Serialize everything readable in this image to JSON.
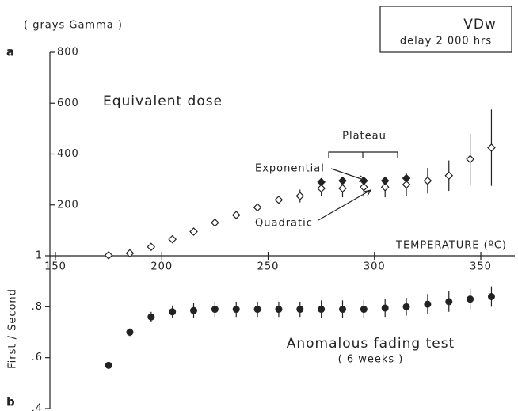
{
  "chart_data": [
    {
      "type": "scatter",
      "panel": "a",
      "title": "Equivalent dose",
      "ylabel": "( grays Gamma )",
      "xlabel": "TEMPERATURE (ºC)",
      "annotations": [
        "Plateau",
        "VDw",
        "delay 2 000 hrs"
      ],
      "xlim": [
        147.4,
        366
      ],
      "xticks": [
        150,
        200,
        250,
        300,
        350
      ],
      "ylim": [
        0,
        800
      ],
      "yticks": [
        200,
        400,
        600,
        800
      ],
      "series": [
        {
          "name": "Quadratic",
          "color": "#222222",
          "filled": false,
          "x": [
            175,
            185,
            195,
            205,
            215,
            225,
            235,
            245,
            255,
            265,
            275,
            285,
            295,
            305,
            315,
            325,
            335,
            345,
            355
          ],
          "values": [
            2,
            10,
            35,
            65,
            95,
            130,
            160,
            190,
            220,
            235,
            265,
            265,
            270,
            270,
            280,
            295,
            315,
            380,
            425
          ],
          "errors": [
            3,
            4,
            5,
            6,
            7,
            8,
            10,
            12,
            15,
            25,
            30,
            35,
            40,
            40,
            45,
            50,
            60,
            100,
            150
          ]
        },
        {
          "name": "Exponential",
          "color": "#222222",
          "filled": true,
          "x": [
            275,
            285,
            295,
            305,
            315
          ],
          "values": [
            290,
            295,
            295,
            295,
            305
          ]
        }
      ]
    },
    {
      "type": "scatter",
      "panel": "b",
      "title": "Anomalous fading test",
      "subtitle": "( 6 weeks )",
      "ylabel": "First / Second",
      "ylim": [
        0.4,
        1
      ],
      "yticks": [
        1,
        {
          "value": 0.8,
          "label": ".8"
        },
        {
          "value": 0.6,
          "label": ".6"
        },
        {
          "value": 0.4,
          "label": ".4"
        }
      ],
      "color": "#222222",
      "x": [
        175,
        185,
        195,
        205,
        215,
        225,
        235,
        245,
        255,
        265,
        275,
        285,
        295,
        305,
        315,
        325,
        335,
        345,
        355
      ],
      "values": [
        0.57,
        0.7,
        0.76,
        0.78,
        0.785,
        0.79,
        0.79,
        0.79,
        0.79,
        0.79,
        0.79,
        0.79,
        0.79,
        0.795,
        0.8,
        0.81,
        0.82,
        0.83,
        0.84
      ],
      "errors": [
        0.01,
        0.015,
        0.02,
        0.025,
        0.03,
        0.03,
        0.03,
        0.03,
        0.03,
        0.03,
        0.035,
        0.035,
        0.035,
        0.035,
        0.035,
        0.04,
        0.04,
        0.04,
        0.04
      ]
    }
  ]
}
